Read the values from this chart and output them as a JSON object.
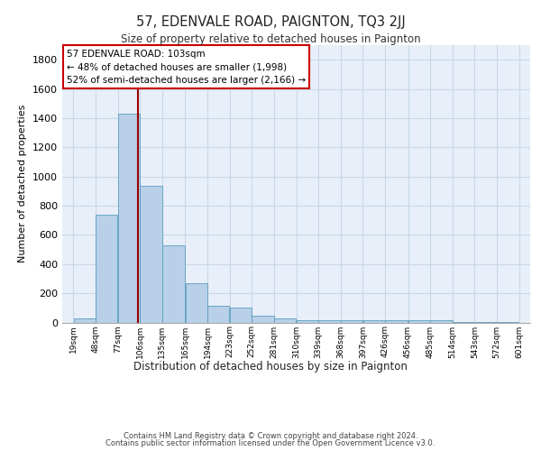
{
  "title": "57, EDENVALE ROAD, PAIGNTON, TQ3 2JJ",
  "subtitle": "Size of property relative to detached houses in Paignton",
  "xlabel": "Distribution of detached houses by size in Paignton",
  "ylabel": "Number of detached properties",
  "bins": [
    19,
    48,
    77,
    106,
    135,
    165,
    194,
    223,
    252,
    281,
    310,
    339,
    368,
    397,
    426,
    456,
    485,
    514,
    543,
    572,
    601
  ],
  "bar_heights": [
    30,
    740,
    1430,
    935,
    530,
    270,
    115,
    105,
    45,
    25,
    15,
    15,
    15,
    15,
    15,
    15,
    15,
    5,
    5,
    5
  ],
  "bar_color": "#b8d0e8",
  "bar_edge_color": "#5a9ec0",
  "grid_color": "#c8d8e8",
  "background_color": "#e8eff8",
  "vline_x": 103,
  "vline_color": "#990000",
  "annotation_text": "57 EDENVALE ROAD: 103sqm\n← 48% of detached houses are smaller (1,998)\n52% of semi-detached houses are larger (2,166) →",
  "annotation_box_color": "#ffffff",
  "annotation_box_edge_color": "#cc0000",
  "ylim": [
    0,
    1900
  ],
  "yticks": [
    0,
    200,
    400,
    600,
    800,
    1000,
    1200,
    1400,
    1600,
    1800
  ],
  "footer1": "Contains HM Land Registry data © Crown copyright and database right 2024.",
  "footer2": "Contains public sector information licensed under the Open Government Licence v3.0."
}
